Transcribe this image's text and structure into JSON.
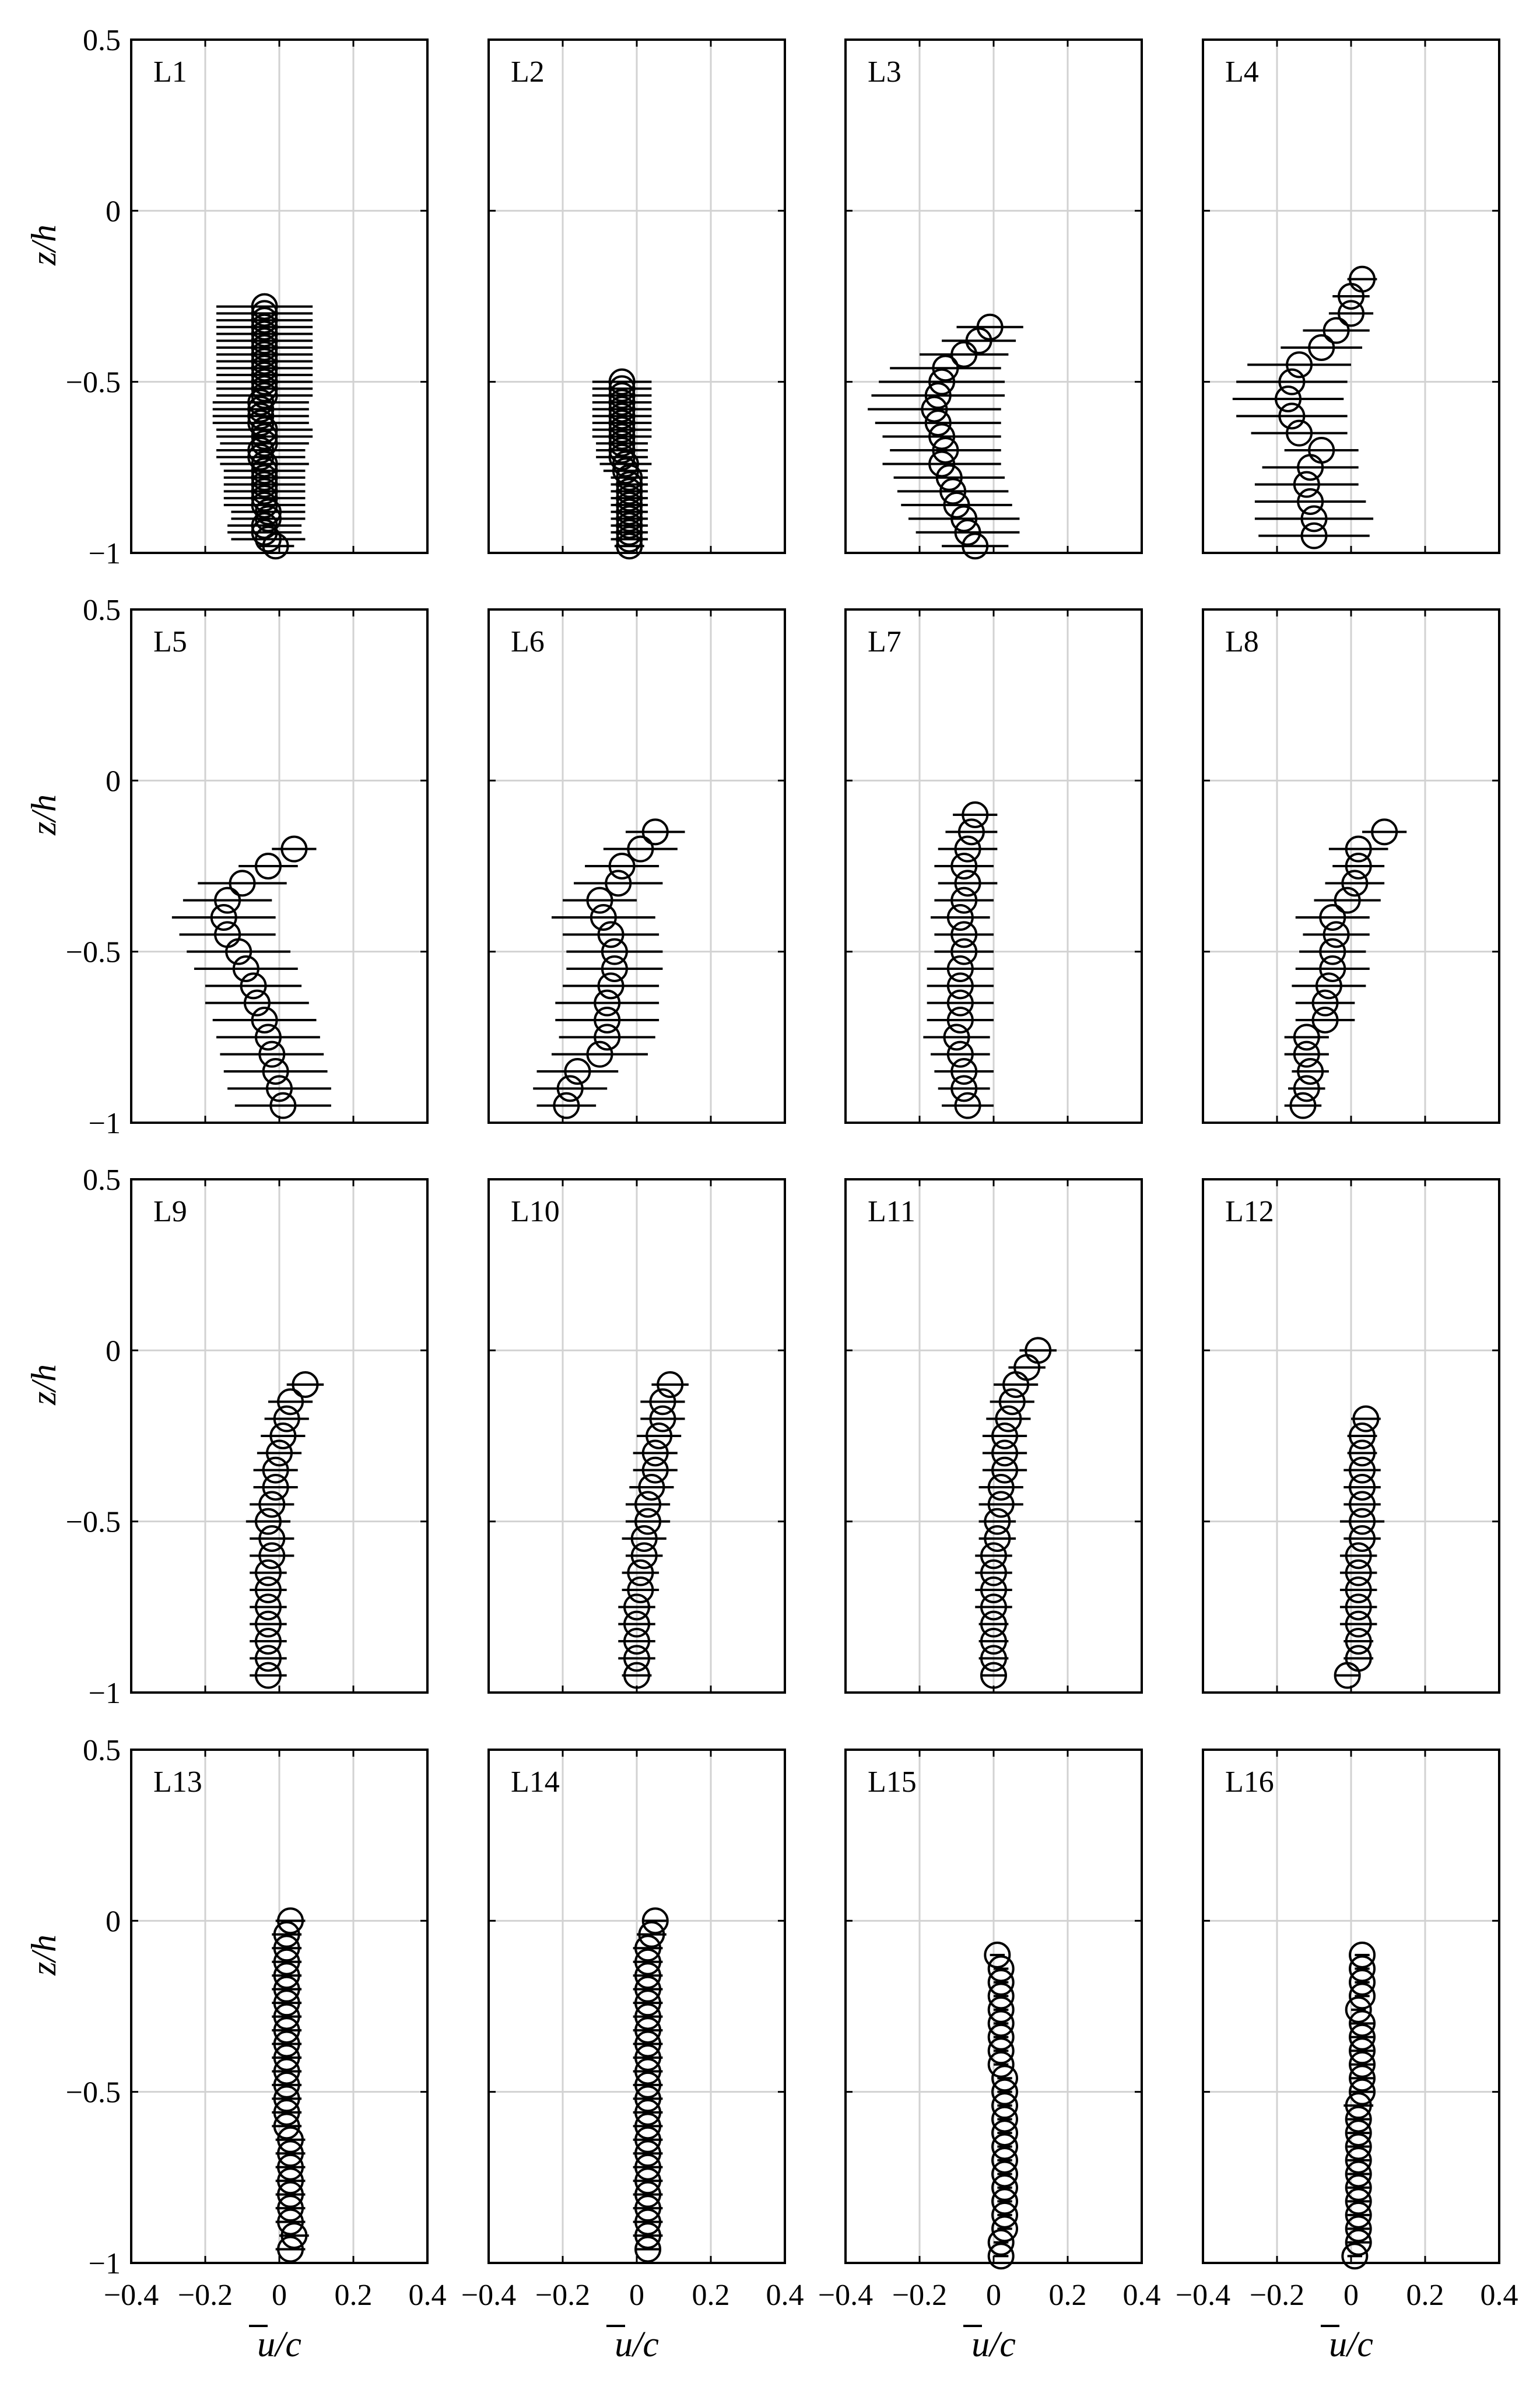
{
  "figure": {
    "ylabel": "z/h",
    "xlabel": "u/c",
    "xlabel_overline": "u"
  },
  "chart_data": {
    "type": "scatter",
    "grid": true,
    "xlim": [
      -0.4,
      0.4
    ],
    "ylim": [
      -1,
      0.5
    ],
    "xticks": [
      -0.4,
      -0.2,
      0,
      0.2,
      0.4
    ],
    "xtick_labels": [
      "−0.4",
      "−0.2",
      "0",
      "0.2",
      "0.4"
    ],
    "yticks": [
      0.5,
      0,
      -0.5,
      -1
    ],
    "ytick_labels": [
      "0.5",
      "0",
      "−0.5",
      "−1"
    ],
    "marker": "open-circle-with-horizontal-errorbar",
    "panels": [
      {
        "label": "L1",
        "z": [
          -0.28,
          -0.3,
          -0.32,
          -0.34,
          -0.36,
          -0.38,
          -0.4,
          -0.42,
          -0.44,
          -0.46,
          -0.48,
          -0.5,
          -0.52,
          -0.54,
          -0.56,
          -0.58,
          -0.6,
          -0.62,
          -0.64,
          -0.66,
          -0.68,
          -0.7,
          -0.72,
          -0.74,
          -0.76,
          -0.78,
          -0.8,
          -0.82,
          -0.84,
          -0.86,
          -0.88,
          -0.9,
          -0.92,
          -0.94,
          -0.96,
          -0.98
        ],
        "u": [
          -0.04,
          -0.04,
          -0.04,
          -0.04,
          -0.04,
          -0.04,
          -0.04,
          -0.04,
          -0.04,
          -0.04,
          -0.04,
          -0.04,
          -0.04,
          -0.04,
          -0.05,
          -0.05,
          -0.05,
          -0.05,
          -0.04,
          -0.04,
          -0.04,
          -0.05,
          -0.05,
          -0.04,
          -0.04,
          -0.04,
          -0.04,
          -0.04,
          -0.04,
          -0.04,
          -0.03,
          -0.03,
          -0.04,
          -0.04,
          -0.03,
          -0.01
        ],
        "err": [
          0.13,
          0.13,
          0.13,
          0.13,
          0.13,
          0.13,
          0.13,
          0.13,
          0.13,
          0.13,
          0.13,
          0.13,
          0.13,
          0.13,
          0.13,
          0.13,
          0.13,
          0.13,
          0.13,
          0.13,
          0.12,
          0.12,
          0.12,
          0.12,
          0.11,
          0.11,
          0.11,
          0.11,
          0.11,
          0.11,
          0.1,
          0.1,
          0.1,
          0.1,
          0.1,
          0.05
        ]
      },
      {
        "label": "L2",
        "z": [
          -0.5,
          -0.52,
          -0.54,
          -0.56,
          -0.58,
          -0.6,
          -0.62,
          -0.64,
          -0.66,
          -0.68,
          -0.7,
          -0.72,
          -0.74,
          -0.76,
          -0.78,
          -0.8,
          -0.82,
          -0.84,
          -0.86,
          -0.88,
          -0.9,
          -0.92,
          -0.94,
          -0.96,
          -0.98
        ],
        "u": [
          -0.04,
          -0.04,
          -0.04,
          -0.04,
          -0.04,
          -0.04,
          -0.04,
          -0.04,
          -0.04,
          -0.04,
          -0.04,
          -0.04,
          -0.03,
          -0.03,
          -0.02,
          -0.02,
          -0.02,
          -0.02,
          -0.02,
          -0.02,
          -0.02,
          -0.02,
          -0.02,
          -0.02,
          -0.02
        ],
        "err": [
          0.08,
          0.08,
          0.08,
          0.08,
          0.08,
          0.08,
          0.08,
          0.08,
          0.08,
          0.07,
          0.07,
          0.07,
          0.07,
          0.06,
          0.05,
          0.05,
          0.05,
          0.05,
          0.05,
          0.05,
          0.05,
          0.05,
          0.05,
          0.05,
          0.04
        ]
      },
      {
        "label": "L3",
        "z": [
          -0.34,
          -0.38,
          -0.42,
          -0.46,
          -0.5,
          -0.54,
          -0.58,
          -0.62,
          -0.66,
          -0.7,
          -0.74,
          -0.78,
          -0.82,
          -0.86,
          -0.9,
          -0.94,
          -0.98
        ],
        "u": [
          -0.01,
          -0.04,
          -0.08,
          -0.13,
          -0.14,
          -0.15,
          -0.16,
          -0.15,
          -0.14,
          -0.13,
          -0.14,
          -0.12,
          -0.11,
          -0.1,
          -0.08,
          -0.07,
          -0.05
        ],
        "err": [
          0.09,
          0.1,
          0.12,
          0.15,
          0.17,
          0.18,
          0.18,
          0.17,
          0.16,
          0.15,
          0.16,
          0.15,
          0.15,
          0.15,
          0.15,
          0.14,
          0.09
        ]
      },
      {
        "label": "L4",
        "z": [
          -0.2,
          -0.25,
          -0.3,
          -0.35,
          -0.4,
          -0.45,
          -0.5,
          -0.55,
          -0.6,
          -0.65,
          -0.7,
          -0.75,
          -0.8,
          -0.85,
          -0.9,
          -0.95
        ],
        "u": [
          0.03,
          0.0,
          0.0,
          -0.04,
          -0.08,
          -0.14,
          -0.16,
          -0.17,
          -0.16,
          -0.14,
          -0.08,
          -0.11,
          -0.12,
          -0.11,
          -0.1,
          -0.1
        ],
        "err": [
          0.04,
          0.05,
          0.06,
          0.09,
          0.11,
          0.14,
          0.15,
          0.15,
          0.15,
          0.13,
          0.1,
          0.13,
          0.14,
          0.15,
          0.16,
          0.15
        ]
      },
      {
        "label": "L5",
        "z": [
          -0.2,
          -0.25,
          -0.3,
          -0.35,
          -0.4,
          -0.45,
          -0.5,
          -0.55,
          -0.6,
          -0.65,
          -0.7,
          -0.75,
          -0.8,
          -0.85,
          -0.9,
          -0.95
        ],
        "u": [
          0.04,
          -0.03,
          -0.1,
          -0.14,
          -0.15,
          -0.14,
          -0.11,
          -0.09,
          -0.07,
          -0.06,
          -0.04,
          -0.03,
          -0.02,
          -0.01,
          0.0,
          0.01
        ],
        "err": [
          0.06,
          0.08,
          0.12,
          0.12,
          0.14,
          0.13,
          0.14,
          0.14,
          0.13,
          0.14,
          0.14,
          0.14,
          0.14,
          0.14,
          0.14,
          0.13
        ]
      },
      {
        "label": "L6",
        "z": [
          -0.15,
          -0.2,
          -0.25,
          -0.3,
          -0.35,
          -0.4,
          -0.45,
          -0.5,
          -0.55,
          -0.6,
          -0.65,
          -0.7,
          -0.75,
          -0.8,
          -0.85,
          -0.9,
          -0.95
        ],
        "u": [
          0.05,
          0.01,
          -0.04,
          -0.05,
          -0.1,
          -0.09,
          -0.07,
          -0.06,
          -0.06,
          -0.07,
          -0.08,
          -0.08,
          -0.08,
          -0.1,
          -0.16,
          -0.18,
          -0.19
        ],
        "err": [
          0.08,
          0.1,
          0.1,
          0.12,
          0.1,
          0.14,
          0.13,
          0.13,
          0.13,
          0.13,
          0.14,
          0.14,
          0.13,
          0.13,
          0.11,
          0.1,
          0.08
        ]
      },
      {
        "label": "L7",
        "z": [
          -0.1,
          -0.15,
          -0.2,
          -0.25,
          -0.3,
          -0.35,
          -0.4,
          -0.45,
          -0.5,
          -0.55,
          -0.6,
          -0.65,
          -0.7,
          -0.75,
          -0.8,
          -0.85,
          -0.9,
          -0.95
        ],
        "u": [
          -0.05,
          -0.06,
          -0.07,
          -0.08,
          -0.07,
          -0.08,
          -0.09,
          -0.08,
          -0.08,
          -0.09,
          -0.09,
          -0.09,
          -0.09,
          -0.1,
          -0.09,
          -0.08,
          -0.08,
          -0.07
        ],
        "err": [
          0.06,
          0.07,
          0.08,
          0.08,
          0.08,
          0.08,
          0.08,
          0.08,
          0.08,
          0.09,
          0.09,
          0.09,
          0.09,
          0.09,
          0.08,
          0.08,
          0.07,
          0.07
        ]
      },
      {
        "label": "L8",
        "z": [
          -0.15,
          -0.2,
          -0.25,
          -0.3,
          -0.35,
          -0.4,
          -0.45,
          -0.5,
          -0.55,
          -0.6,
          -0.65,
          -0.7,
          -0.75,
          -0.8,
          -0.85,
          -0.9,
          -0.95
        ],
        "u": [
          0.09,
          0.02,
          0.02,
          0.01,
          -0.01,
          -0.05,
          -0.04,
          -0.05,
          -0.05,
          -0.06,
          -0.07,
          -0.07,
          -0.12,
          -0.12,
          -0.11,
          -0.12,
          -0.13
        ],
        "err": [
          0.06,
          0.08,
          0.07,
          0.08,
          0.09,
          0.1,
          0.09,
          0.09,
          0.1,
          0.1,
          0.08,
          0.08,
          0.06,
          0.06,
          0.05,
          0.05,
          0.05
        ]
      },
      {
        "label": "L9",
        "z": [
          -0.1,
          -0.15,
          -0.2,
          -0.25,
          -0.3,
          -0.35,
          -0.4,
          -0.45,
          -0.5,
          -0.55,
          -0.6,
          -0.65,
          -0.7,
          -0.75,
          -0.8,
          -0.85,
          -0.9,
          -0.95
        ],
        "u": [
          0.07,
          0.03,
          0.02,
          0.01,
          0.0,
          -0.01,
          -0.01,
          -0.02,
          -0.03,
          -0.02,
          -0.02,
          -0.03,
          -0.03,
          -0.03,
          -0.03,
          -0.03,
          -0.03,
          -0.03
        ],
        "err": [
          0.05,
          0.06,
          0.06,
          0.06,
          0.06,
          0.06,
          0.06,
          0.06,
          0.06,
          0.06,
          0.06,
          0.05,
          0.05,
          0.05,
          0.05,
          0.05,
          0.05,
          0.05
        ]
      },
      {
        "label": "L10",
        "z": [
          -0.1,
          -0.15,
          -0.2,
          -0.25,
          -0.3,
          -0.35,
          -0.4,
          -0.45,
          -0.5,
          -0.55,
          -0.6,
          -0.65,
          -0.7,
          -0.75,
          -0.8,
          -0.85,
          -0.9,
          -0.95
        ],
        "u": [
          0.09,
          0.07,
          0.07,
          0.06,
          0.05,
          0.05,
          0.04,
          0.03,
          0.03,
          0.02,
          0.02,
          0.01,
          0.01,
          0.0,
          0.0,
          0.0,
          0.0,
          0.0
        ],
        "err": [
          0.05,
          0.06,
          0.06,
          0.06,
          0.06,
          0.06,
          0.06,
          0.06,
          0.06,
          0.06,
          0.05,
          0.05,
          0.05,
          0.05,
          0.05,
          0.05,
          0.05,
          0.04
        ]
      },
      {
        "label": "L11",
        "z": [
          0.0,
          -0.05,
          -0.1,
          -0.15,
          -0.2,
          -0.25,
          -0.3,
          -0.35,
          -0.4,
          -0.45,
          -0.5,
          -0.55,
          -0.6,
          -0.65,
          -0.7,
          -0.75,
          -0.8,
          -0.85,
          -0.9,
          -0.95
        ],
        "u": [
          0.12,
          0.09,
          0.06,
          0.05,
          0.04,
          0.03,
          0.03,
          0.03,
          0.02,
          0.02,
          0.01,
          0.01,
          0.0,
          0.0,
          0.0,
          0.0,
          0.0,
          0.0,
          0.0,
          0.0
        ],
        "err": [
          0.05,
          0.05,
          0.06,
          0.06,
          0.06,
          0.06,
          0.06,
          0.06,
          0.06,
          0.06,
          0.05,
          0.05,
          0.05,
          0.05,
          0.05,
          0.05,
          0.04,
          0.04,
          0.04,
          0.03
        ]
      },
      {
        "label": "L12",
        "z": [
          -0.2,
          -0.25,
          -0.3,
          -0.35,
          -0.4,
          -0.45,
          -0.5,
          -0.55,
          -0.6,
          -0.65,
          -0.7,
          -0.75,
          -0.8,
          -0.85,
          -0.9,
          -0.95
        ],
        "u": [
          0.04,
          0.03,
          0.03,
          0.03,
          0.03,
          0.03,
          0.03,
          0.03,
          0.02,
          0.02,
          0.02,
          0.02,
          0.02,
          0.02,
          0.02,
          -0.01
        ],
        "err": [
          0.04,
          0.04,
          0.04,
          0.05,
          0.05,
          0.05,
          0.06,
          0.05,
          0.05,
          0.05,
          0.05,
          0.05,
          0.05,
          0.04,
          0.04,
          0.03
        ]
      },
      {
        "label": "L13",
        "z": [
          0.0,
          -0.04,
          -0.08,
          -0.12,
          -0.16,
          -0.2,
          -0.24,
          -0.28,
          -0.32,
          -0.36,
          -0.4,
          -0.44,
          -0.48,
          -0.52,
          -0.56,
          -0.6,
          -0.64,
          -0.68,
          -0.72,
          -0.76,
          -0.8,
          -0.84,
          -0.88,
          -0.92,
          -0.96
        ],
        "u": [
          0.03,
          0.02,
          0.02,
          0.02,
          0.02,
          0.02,
          0.02,
          0.02,
          0.02,
          0.02,
          0.02,
          0.02,
          0.02,
          0.02,
          0.02,
          0.02,
          0.03,
          0.03,
          0.03,
          0.03,
          0.03,
          0.03,
          0.03,
          0.04,
          0.03
        ],
        "err": [
          0.04,
          0.04,
          0.04,
          0.04,
          0.04,
          0.04,
          0.04,
          0.04,
          0.04,
          0.04,
          0.04,
          0.04,
          0.04,
          0.04,
          0.04,
          0.04,
          0.04,
          0.04,
          0.04,
          0.04,
          0.04,
          0.04,
          0.04,
          0.04,
          0.04
        ]
      },
      {
        "label": "L14",
        "z": [
          0.0,
          -0.04,
          -0.08,
          -0.12,
          -0.16,
          -0.2,
          -0.24,
          -0.28,
          -0.32,
          -0.36,
          -0.4,
          -0.44,
          -0.48,
          -0.52,
          -0.56,
          -0.6,
          -0.64,
          -0.68,
          -0.72,
          -0.76,
          -0.8,
          -0.84,
          -0.88,
          -0.92,
          -0.96
        ],
        "u": [
          0.05,
          0.04,
          0.03,
          0.03,
          0.03,
          0.03,
          0.03,
          0.03,
          0.03,
          0.03,
          0.03,
          0.03,
          0.03,
          0.03,
          0.03,
          0.03,
          0.03,
          0.03,
          0.03,
          0.03,
          0.03,
          0.03,
          0.03,
          0.03,
          0.03
        ],
        "err": [
          0.03,
          0.04,
          0.04,
          0.04,
          0.04,
          0.04,
          0.04,
          0.04,
          0.04,
          0.04,
          0.04,
          0.04,
          0.04,
          0.04,
          0.04,
          0.04,
          0.04,
          0.04,
          0.04,
          0.04,
          0.04,
          0.04,
          0.04,
          0.04,
          0.03
        ]
      },
      {
        "label": "L15",
        "z": [
          -0.1,
          -0.14,
          -0.18,
          -0.22,
          -0.26,
          -0.3,
          -0.34,
          -0.38,
          -0.42,
          -0.46,
          -0.5,
          -0.54,
          -0.58,
          -0.62,
          -0.66,
          -0.7,
          -0.74,
          -0.78,
          -0.82,
          -0.86,
          -0.9,
          -0.94,
          -0.98
        ],
        "u": [
          0.01,
          0.02,
          0.02,
          0.02,
          0.02,
          0.02,
          0.02,
          0.02,
          0.02,
          0.03,
          0.03,
          0.03,
          0.03,
          0.03,
          0.03,
          0.03,
          0.03,
          0.03,
          0.03,
          0.03,
          0.03,
          0.02,
          0.02
        ],
        "err": [
          0.02,
          0.02,
          0.02,
          0.02,
          0.02,
          0.02,
          0.02,
          0.02,
          0.02,
          0.02,
          0.02,
          0.02,
          0.02,
          0.02,
          0.02,
          0.02,
          0.02,
          0.02,
          0.02,
          0.02,
          0.02,
          0.02,
          0.02
        ]
      },
      {
        "label": "L16",
        "z": [
          -0.1,
          -0.14,
          -0.18,
          -0.22,
          -0.26,
          -0.3,
          -0.34,
          -0.38,
          -0.42,
          -0.46,
          -0.5,
          -0.54,
          -0.58,
          -0.62,
          -0.66,
          -0.7,
          -0.74,
          -0.78,
          -0.82,
          -0.86,
          -0.9,
          -0.94,
          -0.98
        ],
        "u": [
          0.03,
          0.03,
          0.03,
          0.03,
          0.02,
          0.03,
          0.03,
          0.03,
          0.03,
          0.03,
          0.03,
          0.02,
          0.02,
          0.02,
          0.02,
          0.02,
          0.02,
          0.02,
          0.02,
          0.02,
          0.02,
          0.02,
          0.01
        ],
        "err": [
          0.02,
          0.02,
          0.02,
          0.02,
          0.02,
          0.03,
          0.03,
          0.03,
          0.03,
          0.03,
          0.03,
          0.04,
          0.03,
          0.03,
          0.03,
          0.03,
          0.03,
          0.03,
          0.03,
          0.03,
          0.03,
          0.03,
          0.02
        ]
      }
    ]
  }
}
